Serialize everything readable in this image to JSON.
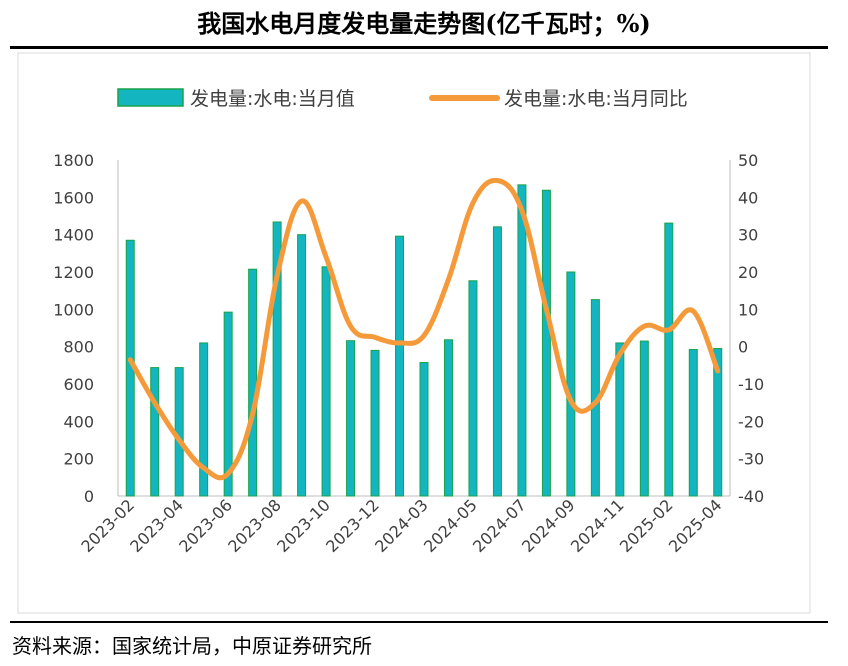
{
  "title": "我国水电月度发电量走势图(亿千瓦时；%)",
  "source": "资料来源：国家统计局，中原证券研究所",
  "chart_data": {
    "type": "bar",
    "title": "我国水电月度发电量走势图(亿千瓦时；%)",
    "categories": [
      "2023-02",
      "2023-03",
      "2023-04",
      "2023-05",
      "2023-06",
      "2023-07",
      "2023-08",
      "2023-09",
      "2023-10",
      "2023-11",
      "2023-12",
      "2024-01",
      "2024-03",
      "2024-04",
      "2024-05",
      "2024-06",
      "2024-07",
      "2024-08",
      "2024-09",
      "2024-10",
      "2024-11",
      "2024-12",
      "2025-02",
      "2025-03",
      "2025-04"
    ],
    "x_tick_labels": [
      "2023-02",
      "2023-04",
      "2023-06",
      "2023-08",
      "2023-10",
      "2023-12",
      "2024-03",
      "2024-05",
      "2024-07",
      "2024-09",
      "2024-11",
      "2025-02",
      "2025-04"
    ],
    "series": [
      {
        "name": "发电量:水电:当月值",
        "type": "bar",
        "axis": "left",
        "color": "#13B5C0",
        "edge_color": "#19A34A",
        "values": [
          1370,
          688,
          688,
          820,
          985,
          1215,
          1468,
          1400,
          1228,
          832,
          780,
          1392,
          715,
          837,
          1153,
          1442,
          1667,
          1638,
          1200,
          1052,
          820,
          830,
          1462,
          785,
          790
        ]
      },
      {
        "name": "发电量:水电:当月同比",
        "type": "line",
        "axis": "right",
        "color": "#F59A3A",
        "values": [
          -3.5,
          -15,
          -25,
          -32.5,
          -34,
          -18,
          19,
          39,
          24,
          5.5,
          2.5,
          1,
          3,
          18,
          38.5,
          44.5,
          36.5,
          10,
          -14.5,
          -15,
          -2,
          5.5,
          4.5,
          9.5,
          -6.5
        ]
      }
    ],
    "y_left": {
      "min": 0,
      "max": 1800,
      "ticks": [
        0,
        200,
        400,
        600,
        800,
        1000,
        1200,
        1400,
        1600,
        1800
      ]
    },
    "y_right": {
      "min": -40,
      "max": 50,
      "ticks": [
        -40,
        -30,
        -20,
        -10,
        0,
        10,
        20,
        30,
        40,
        50
      ]
    },
    "legend_position": "top",
    "grid": false
  }
}
